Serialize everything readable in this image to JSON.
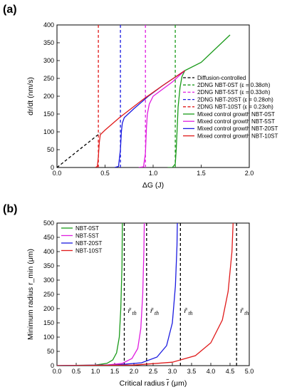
{
  "chart_data": [
    {
      "type": "line",
      "panel_label": "(a)",
      "xlabel": "ΔG (J)",
      "ylabel": "dr/dt (nm/s)",
      "xlim": [
        0.0,
        2.0
      ],
      "ylim": [
        0,
        400
      ],
      "xticks": [
        "0.0",
        "0.5",
        "1.0",
        "1.5",
        "2.0"
      ],
      "yticks": [
        "0",
        "50",
        "100",
        "150",
        "200",
        "250",
        "300",
        "350",
        "400"
      ],
      "legend_position": "right",
      "series": [
        {
          "name": "Diffusion-controlled",
          "color": "#000000",
          "dash": "dashed",
          "points": [
            [
              0.0,
              0
            ],
            [
              0.45,
              97
            ]
          ]
        },
        {
          "name": "2DNG NBT-0ST (ε = 0.38σh)",
          "color": "#1a9a1a",
          "dash": "dashed",
          "points": [
            [
              1.23,
              0
            ],
            [
              1.23,
              400
            ]
          ]
        },
        {
          "name": "2DNG NBT-5ST (ε = 0.33σh)",
          "color": "#e01ee0",
          "dash": "dashed",
          "points": [
            [
              0.92,
              0
            ],
            [
              0.92,
              400
            ]
          ]
        },
        {
          "name": "2DNG NBT-20ST (ε = 0.28σh)",
          "color": "#1a1ae0",
          "dash": "dashed",
          "points": [
            [
              0.66,
              0
            ],
            [
              0.66,
              400
            ]
          ]
        },
        {
          "name": "2DNG NBT-10ST (ε = 0.23σh)",
          "color": "#e01a1a",
          "dash": "dashed",
          "points": [
            [
              0.43,
              0
            ],
            [
              0.43,
              400
            ]
          ]
        },
        {
          "name": "Mixed control growth NBT-0ST",
          "color": "#1a9a1a",
          "dash": "solid",
          "points": [
            [
              1.15,
              0
            ],
            [
              1.2,
              0
            ],
            [
              1.23,
              10
            ],
            [
              1.24,
              50
            ],
            [
              1.25,
              110
            ],
            [
              1.26,
              170
            ],
            [
              1.28,
              225
            ],
            [
              1.3,
              255
            ],
            [
              1.33,
              272
            ],
            [
              1.5,
              295
            ],
            [
              1.8,
              372
            ]
          ]
        },
        {
          "name": "Mixed control growth NBT-5ST",
          "color": "#e01ee0",
          "dash": "solid",
          "points": [
            [
              0.85,
              0
            ],
            [
              0.9,
              2
            ],
            [
              0.92,
              40
            ],
            [
              0.93,
              110
            ],
            [
              0.94,
              150
            ],
            [
              0.96,
              178
            ],
            [
              1.0,
              200
            ],
            [
              1.2,
              240
            ],
            [
              1.33,
              272
            ]
          ]
        },
        {
          "name": "Mixed control growth NBT-20ST",
          "color": "#1a1ae0",
          "dash": "solid",
          "points": [
            [
              0.6,
              0
            ],
            [
              0.64,
              3
            ],
            [
              0.66,
              50
            ],
            [
              0.67,
              100
            ],
            [
              0.68,
              125
            ],
            [
              0.7,
              140
            ],
            [
              0.8,
              165
            ],
            [
              0.95,
              200
            ],
            [
              1.1,
              230
            ],
            [
              1.33,
              272
            ]
          ]
        },
        {
          "name": "Mixed control growth NBT-10ST",
          "color": "#e01a1a",
          "dash": "solid",
          "points": [
            [
              0.4,
              0
            ],
            [
              0.42,
              3
            ],
            [
              0.43,
              30
            ],
            [
              0.44,
              70
            ],
            [
              0.45,
              92
            ],
            [
              0.5,
              105
            ],
            [
              0.65,
              140
            ],
            [
              0.9,
              192
            ],
            [
              1.1,
              230
            ],
            [
              1.33,
              272
            ]
          ]
        }
      ]
    },
    {
      "type": "line",
      "panel_label": "(b)",
      "xlabel": "Critical radius r̃ (μm)",
      "ylabel": "Minimum radius r_min (μm)",
      "xlim": [
        0.0,
        5.0
      ],
      "ylim": [
        0,
        500
      ],
      "xticks": [
        "0.0",
        "0.5",
        "1.0",
        "1.5",
        "2.0",
        "2.5",
        "3.0",
        "3.5",
        "4.0",
        "4.5",
        "5.0"
      ],
      "yticks": [
        "0",
        "50",
        "100",
        "150",
        "200",
        "250",
        "300",
        "350",
        "400",
        "450",
        "500"
      ],
      "legend_position": "top-left",
      "threshold_label": "r̃",
      "threshold_subscript": "th",
      "thresholds": [
        {
          "x": 1.75,
          "color": "#000000"
        },
        {
          "x": 2.33,
          "color": "#000000"
        },
        {
          "x": 3.21,
          "color": "#000000"
        },
        {
          "x": 4.67,
          "color": "#000000"
        }
      ],
      "series": [
        {
          "name": "NBT-0ST",
          "color": "#1a9a1a",
          "points": [
            [
              0.0,
              0
            ],
            [
              1.0,
              2
            ],
            [
              1.3,
              8
            ],
            [
              1.45,
              20
            ],
            [
              1.55,
              45
            ],
            [
              1.62,
              100
            ],
            [
              1.66,
              200
            ],
            [
              1.69,
              350
            ],
            [
              1.7,
              500
            ]
          ]
        },
        {
          "name": "NBT-5ST",
          "color": "#e01ee0",
          "points": [
            [
              0.0,
              0
            ],
            [
              1.3,
              2
            ],
            [
              1.7,
              8
            ],
            [
              1.95,
              25
            ],
            [
              2.1,
              60
            ],
            [
              2.18,
              130
            ],
            [
              2.23,
              250
            ],
            [
              2.26,
              400
            ],
            [
              2.27,
              500
            ]
          ]
        },
        {
          "name": "NBT-20ST",
          "color": "#1a1ae0",
          "points": [
            [
              0.0,
              0
            ],
            [
              1.5,
              2
            ],
            [
              2.2,
              10
            ],
            [
              2.6,
              30
            ],
            [
              2.85,
              70
            ],
            [
              3.0,
              150
            ],
            [
              3.08,
              280
            ],
            [
              3.12,
              420
            ],
            [
              3.13,
              500
            ]
          ]
        },
        {
          "name": "NBT-10ST",
          "color": "#e01a1a",
          "points": [
            [
              0.0,
              0
            ],
            [
              2.0,
              2
            ],
            [
              3.0,
              12
            ],
            [
              3.6,
              35
            ],
            [
              4.0,
              80
            ],
            [
              4.3,
              160
            ],
            [
              4.45,
              260
            ],
            [
              4.55,
              400
            ],
            [
              4.58,
              500
            ]
          ]
        }
      ]
    }
  ]
}
